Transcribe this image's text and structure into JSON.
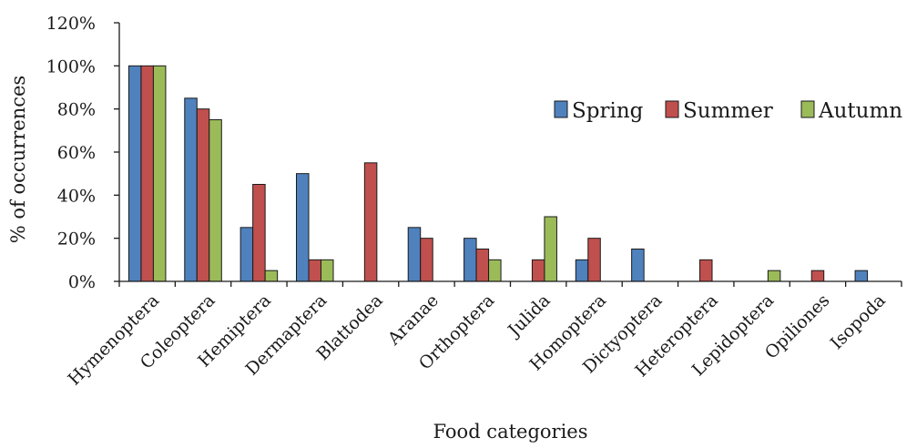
{
  "chart_data": {
    "type": "bar",
    "title": "",
    "xlabel": "Food categories",
    "ylabel": "% of occurrences",
    "ylim": [
      0,
      120
    ],
    "y_ticks": [
      "0%",
      "20%",
      "40%",
      "60%",
      "80%",
      "100%",
      "120%"
    ],
    "y_tick_values": [
      0,
      20,
      40,
      60,
      80,
      100,
      120
    ],
    "grid": false,
    "legend_position": "right",
    "categories": [
      "Hymenoptera",
      "Coleoptera",
      "Hemiptera",
      "Dermaptera",
      "Blattodea",
      "Aranae",
      "Orthoptera",
      "Julida",
      "Homoptera",
      "Dictyoptera",
      "Heteroptera",
      "Lepidoptera",
      "Opiliones",
      "Isopoda"
    ],
    "series": [
      {
        "name": "Spring",
        "color": "#4f81bd",
        "values": [
          100,
          85,
          25,
          50,
          0,
          25,
          20,
          0,
          10,
          15,
          0,
          0,
          0,
          5
        ]
      },
      {
        "name": "Summer",
        "color": "#c0504d",
        "values": [
          100,
          80,
          45,
          10,
          55,
          20,
          15,
          10,
          20,
          0,
          10,
          0,
          5,
          0
        ]
      },
      {
        "name": "Autumn",
        "color": "#9bbb59",
        "values": [
          100,
          75,
          5,
          10,
          0,
          0,
          10,
          30,
          0,
          0,
          0,
          5,
          0,
          0
        ]
      }
    ]
  }
}
